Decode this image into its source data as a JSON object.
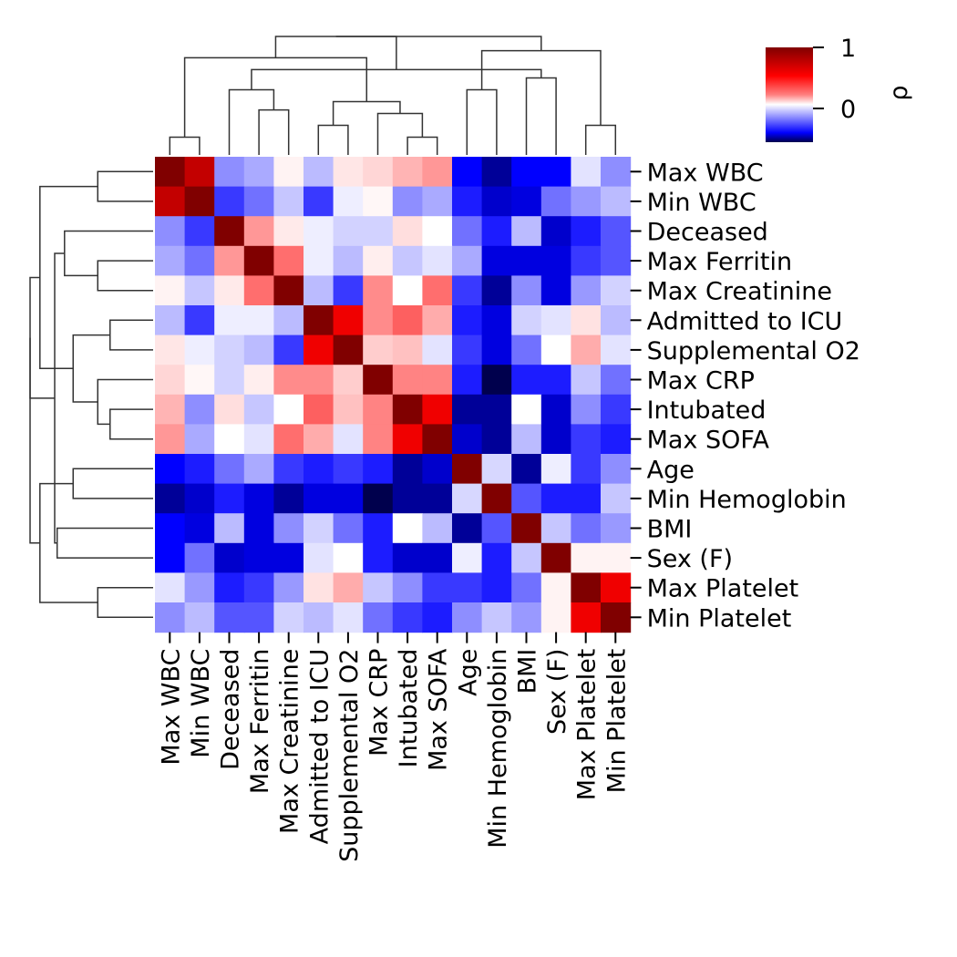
{
  "chart_data": {
    "type": "heatmap",
    "subtype": "clustermap",
    "title": "",
    "colormap": "seismic",
    "labels": [
      "Max WBC",
      "Min WBC",
      "Deceased",
      "Max Ferritin",
      "Max Creatinine",
      "Admitted to ICU",
      "Supplemental O2",
      "Max CRP",
      "Intubated",
      "Max SOFA",
      "Age",
      "Min Hemoglobin",
      "BMI",
      "Sex (F)",
      "Max Platelet",
      "Min Platelet"
    ],
    "row_labels": [
      "Max WBC",
      "Min WBC",
      "Deceased",
      "Max Ferritin",
      "Max Creatinine",
      "Admitted to ICU",
      "Supplemental O2",
      "Max CRP",
      "Intubated",
      "Max SOFA",
      "Age",
      "Min Hemoglobin",
      "BMI",
      "Sex (F)",
      "Max Platelet",
      "Min Platelet"
    ],
    "col_labels": [
      "Max WBC",
      "Min WBC",
      "Deceased",
      "Max Ferritin",
      "Max Creatinine",
      "Admitted to ICU",
      "Supplemental O2",
      "Max CRP",
      "Intubated",
      "Max SOFA",
      "Age",
      "Min Hemoglobin",
      "BMI",
      "Sex (F)",
      "Max Platelet",
      "Min Platelet"
    ],
    "values": [
      [
        1.0,
        0.85,
        -0.2,
        -0.15,
        0.03,
        -0.12,
        0.06,
        0.1,
        0.18,
        0.25,
        -0.45,
        -0.55,
        -0.45,
        -0.45,
        -0.05,
        -0.2
      ],
      [
        0.85,
        1.0,
        -0.35,
        -0.25,
        -0.1,
        -0.35,
        -0.03,
        0.02,
        -0.2,
        -0.15,
        -0.4,
        -0.5,
        -0.48,
        -0.25,
        -0.18,
        -0.12
      ],
      [
        -0.2,
        -0.35,
        1.0,
        0.25,
        0.05,
        -0.03,
        -0.08,
        -0.08,
        0.08,
        0.0,
        -0.25,
        -0.4,
        -0.12,
        -0.5,
        -0.4,
        -0.3
      ],
      [
        -0.15,
        -0.25,
        0.25,
        1.0,
        0.35,
        -0.03,
        -0.12,
        0.04,
        -0.1,
        -0.05,
        -0.15,
        -0.48,
        -0.48,
        -0.48,
        -0.35,
        -0.3
      ],
      [
        0.03,
        -0.1,
        0.05,
        0.35,
        1.0,
        -0.12,
        -0.35,
        0.28,
        0.0,
        0.35,
        -0.35,
        -0.55,
        -0.2,
        -0.48,
        -0.18,
        -0.08
      ],
      [
        -0.12,
        -0.35,
        -0.03,
        -0.03,
        -0.12,
        1.0,
        0.75,
        0.28,
        0.4,
        0.2,
        -0.4,
        -0.48,
        -0.08,
        -0.05,
        0.07,
        -0.12
      ],
      [
        0.06,
        -0.03,
        -0.08,
        -0.12,
        -0.35,
        0.75,
        1.0,
        0.12,
        0.15,
        -0.05,
        -0.35,
        -0.48,
        -0.25,
        0.0,
        0.2,
        -0.05
      ],
      [
        0.1,
        0.02,
        -0.08,
        0.04,
        0.28,
        0.28,
        0.12,
        1.0,
        0.3,
        0.3,
        -0.4,
        -0.65,
        -0.4,
        -0.4,
        -0.1,
        -0.25
      ],
      [
        0.18,
        -0.2,
        0.08,
        -0.1,
        0.0,
        0.4,
        0.15,
        0.3,
        1.0,
        0.75,
        -0.55,
        -0.55,
        0.0,
        -0.5,
        -0.2,
        -0.35
      ],
      [
        0.25,
        -0.15,
        0.0,
        -0.05,
        0.35,
        0.2,
        -0.05,
        0.3,
        0.75,
        1.0,
        -0.5,
        -0.55,
        -0.12,
        -0.5,
        -0.35,
        -0.4
      ],
      [
        -0.45,
        -0.4,
        -0.25,
        -0.15,
        -0.35,
        -0.4,
        -0.35,
        -0.4,
        -0.55,
        -0.5,
        1.0,
        -0.07,
        -0.55,
        -0.03,
        -0.35,
        -0.2
      ],
      [
        -0.55,
        -0.5,
        -0.4,
        -0.48,
        -0.55,
        -0.48,
        -0.48,
        -0.65,
        -0.55,
        -0.55,
        -0.07,
        1.0,
        -0.3,
        -0.4,
        -0.4,
        -0.1
      ],
      [
        -0.45,
        -0.48,
        -0.12,
        -0.48,
        -0.2,
        -0.08,
        -0.25,
        -0.4,
        0.0,
        -0.12,
        -0.55,
        -0.3,
        1.0,
        -0.1,
        -0.25,
        -0.18
      ],
      [
        -0.45,
        -0.25,
        -0.5,
        -0.48,
        -0.48,
        -0.05,
        0.0,
        -0.4,
        -0.5,
        -0.5,
        -0.03,
        -0.4,
        -0.1,
        1.0,
        0.03,
        0.03
      ],
      [
        -0.05,
        -0.18,
        -0.4,
        -0.35,
        -0.18,
        0.07,
        0.2,
        -0.1,
        -0.2,
        -0.35,
        -0.35,
        -0.4,
        -0.25,
        0.03,
        1.0,
        0.75
      ],
      [
        -0.2,
        -0.12,
        -0.3,
        -0.3,
        -0.08,
        -0.12,
        -0.05,
        -0.25,
        -0.35,
        -0.4,
        -0.2,
        -0.1,
        -0.18,
        0.03,
        0.75,
        1.0
      ]
    ],
    "colorbar": {
      "label": "ρ",
      "ticks": [
        1,
        0
      ],
      "tick_labels": [
        "1",
        "0"
      ],
      "range": [
        -0.66,
        1
      ]
    },
    "dendrogram": {
      "merges": [
        [
          0,
          1
        ],
        [
          8,
          9
        ],
        [
          5,
          6
        ],
        [
          7,
          17
        ],
        [
          3,
          4
        ],
        [
          18,
          19
        ],
        [
          2,
          20
        ],
        [
          14,
          15
        ],
        [
          10,
          11
        ],
        [
          12,
          13
        ],
        [
          21,
          16
        ],
        [
          25,
          22
        ],
        [
          23,
          24
        ],
        [
          26,
          27
        ],
        [
          28,
          29
        ]
      ],
      "heights": [
        0.15,
        0.15,
        0.25,
        0.35,
        0.38,
        0.45,
        0.55,
        0.25,
        0.55,
        0.65,
        0.82,
        0.72,
        0.88,
        1.0,
        1.0
      ]
    },
    "dendrogram_side": {
      "merges": [
        [
          0,
          1
        ],
        [
          8,
          9
        ],
        [
          5,
          6
        ],
        [
          7,
          17
        ],
        [
          3,
          4
        ],
        [
          18,
          19
        ],
        [
          2,
          20
        ],
        [
          14,
          15
        ],
        [
          10,
          11
        ],
        [
          12,
          13
        ],
        [
          21,
          16
        ],
        [
          25,
          22
        ],
        [
          23,
          24
        ],
        [
          26,
          27
        ],
        [
          28,
          29
        ]
      ],
      "heights": [
        0.45,
        0.35,
        0.35,
        0.45,
        0.45,
        0.65,
        0.72,
        0.45,
        0.65,
        0.78,
        0.92,
        0.8,
        0.92,
        1.0,
        1.0
      ]
    },
    "colorbar_position": "top-right",
    "grid": false
  }
}
